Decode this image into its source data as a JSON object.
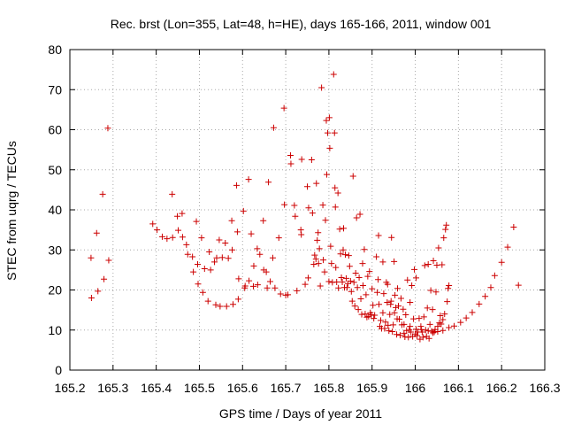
{
  "chart_data": {
    "type": "scatter",
    "title": "Rec. brst (Lon=355, Lat=48, h=HE), days 165-166, 2011, window 001",
    "xlabel": "GPS time / Days of year 2011",
    "ylabel": "STEC from uqrg / TECUs",
    "xlim": [
      165.2,
      166.3
    ],
    "ylim": [
      0,
      80
    ],
    "x_ticks": [
      165.2,
      165.3,
      165.4,
      165.5,
      165.6,
      165.7,
      165.8,
      165.9,
      166.0,
      166.1,
      166.2,
      166.3
    ],
    "x_tick_labels": [
      "165.2",
      "165.3",
      "165.4",
      "165.5",
      "165.6",
      "165.7",
      "165.8",
      "165.9",
      "166",
      "166.1",
      "166.2",
      "166.3"
    ],
    "y_ticks": [
      0,
      10,
      20,
      30,
      40,
      50,
      60,
      70,
      80
    ],
    "y_tick_labels": [
      "0",
      "10",
      "20",
      "30",
      "40",
      "50",
      "60",
      "70",
      "80"
    ],
    "grid": true,
    "marker": "+",
    "marker_color": "#cc0000",
    "series": [
      {
        "points": [
          [
            165.249,
            28.0
          ],
          [
            165.25,
            18.0
          ],
          [
            165.262,
            34.2
          ],
          [
            165.265,
            19.7
          ],
          [
            165.276,
            43.9
          ],
          [
            165.279,
            22.7
          ],
          [
            165.288,
            60.4
          ],
          [
            165.29,
            27.4
          ],
          [
            165.392,
            36.5
          ],
          [
            165.402,
            35.0
          ],
          [
            165.414,
            33.3
          ],
          [
            165.425,
            32.8
          ],
          [
            165.437,
            43.9
          ],
          [
            165.438,
            33.1
          ],
          [
            165.449,
            38.4
          ],
          [
            165.451,
            34.9
          ],
          [
            165.46,
            39.1
          ],
          [
            165.461,
            33.2
          ],
          [
            165.47,
            31.3
          ],
          [
            165.473,
            28.9
          ],
          [
            165.484,
            28.3
          ],
          [
            165.486,
            24.5
          ],
          [
            165.493,
            37.1
          ],
          [
            165.496,
            26.4
          ],
          [
            165.497,
            21.5
          ],
          [
            165.505,
            33.0
          ],
          [
            165.508,
            19.4
          ],
          [
            165.512,
            25.3
          ],
          [
            165.52,
            17.2
          ],
          [
            165.523,
            29.5
          ],
          [
            165.526,
            25.0
          ],
          [
            165.535,
            27.0
          ],
          [
            165.538,
            16.3
          ],
          [
            165.54,
            28.0
          ],
          [
            165.546,
            32.5
          ],
          [
            165.548,
            15.9
          ],
          [
            165.553,
            28.1
          ],
          [
            165.56,
            31.7
          ],
          [
            165.563,
            15.9
          ],
          [
            165.567,
            27.9
          ],
          [
            165.575,
            37.3
          ],
          [
            165.576,
            30.0
          ],
          [
            165.578,
            16.4
          ],
          [
            165.586,
            46.1
          ],
          [
            165.588,
            34.5
          ],
          [
            165.59,
            17.7
          ],
          [
            165.591,
            22.8
          ],
          [
            165.602,
            39.7
          ],
          [
            165.605,
            20.5
          ],
          [
            165.606,
            21.0
          ],
          [
            165.614,
            47.6
          ],
          [
            165.615,
            22.3
          ],
          [
            165.62,
            34.0
          ],
          [
            165.625,
            20.9
          ],
          [
            165.626,
            26.0
          ],
          [
            165.634,
            30.3
          ],
          [
            165.635,
            21.3
          ],
          [
            165.64,
            28.9
          ],
          [
            165.648,
            37.3
          ],
          [
            165.649,
            25.0
          ],
          [
            165.655,
            24.5
          ],
          [
            165.657,
            20.5
          ],
          [
            165.66,
            46.9
          ],
          [
            165.664,
            22.1
          ],
          [
            165.67,
            28.0
          ],
          [
            165.672,
            60.5
          ],
          [
            165.675,
            20.5
          ],
          [
            165.684,
            33.0
          ],
          [
            165.688,
            19.0
          ],
          [
            165.696,
            65.4
          ],
          [
            165.697,
            41.3
          ],
          [
            165.7,
            18.7
          ],
          [
            165.705,
            18.8
          ],
          [
            165.711,
            53.6
          ],
          [
            165.712,
            51.5
          ],
          [
            165.72,
            41.1
          ],
          [
            165.722,
            38.4
          ],
          [
            165.726,
            19.8
          ],
          [
            165.735,
            35.0
          ],
          [
            165.736,
            33.8
          ],
          [
            165.737,
            52.6
          ],
          [
            165.745,
            21.4
          ],
          [
            165.75,
            45.8
          ],
          [
            165.752,
            23.0
          ],
          [
            165.753,
            40.5
          ],
          [
            165.76,
            52.5
          ],
          [
            165.762,
            39.2
          ],
          [
            165.765,
            26.4
          ],
          [
            165.767,
            28.7
          ],
          [
            165.77,
            27.7
          ],
          [
            165.771,
            46.6
          ],
          [
            165.773,
            32.4
          ],
          [
            165.775,
            34.3
          ],
          [
            165.776,
            26.6
          ],
          [
            165.778,
            30.3
          ],
          [
            165.78,
            21.0
          ],
          [
            165.783,
            70.5
          ],
          [
            165.786,
            41.2
          ],
          [
            165.787,
            27.5
          ],
          [
            165.79,
            24.5
          ],
          [
            165.792,
            37.4
          ],
          [
            165.794,
            62.3
          ],
          [
            165.795,
            48.8
          ],
          [
            165.797,
            59.2
          ],
          [
            165.8,
            22.1
          ],
          [
            165.801,
            63.0
          ],
          [
            165.802,
            55.4
          ],
          [
            165.804,
            30.9
          ],
          [
            165.806,
            26.6
          ],
          [
            165.808,
            21.9
          ],
          [
            165.811,
            73.8
          ],
          [
            165.813,
            59.2
          ],
          [
            165.814,
            45.5
          ],
          [
            165.815,
            40.7
          ],
          [
            165.816,
            25.6
          ],
          [
            165.818,
            22.0
          ],
          [
            165.821,
            44.2
          ],
          [
            165.822,
            20.5
          ],
          [
            165.825,
            35.2
          ],
          [
            165.827,
            29.0
          ],
          [
            165.829,
            23.1
          ],
          [
            165.831,
            22.0
          ],
          [
            165.833,
            30.0
          ],
          [
            165.834,
            35.4
          ],
          [
            165.836,
            20.6
          ],
          [
            165.838,
            28.8
          ],
          [
            165.84,
            22.9
          ],
          [
            165.842,
            20.6
          ],
          [
            165.844,
            21.6
          ],
          [
            165.846,
            28.6
          ],
          [
            165.848,
            25.9
          ],
          [
            165.85,
            22.2
          ],
          [
            165.852,
            19.6
          ],
          [
            165.854,
            17.2
          ],
          [
            165.856,
            48.4
          ],
          [
            165.858,
            21.9
          ],
          [
            165.86,
            16.0
          ],
          [
            165.862,
            24.2
          ],
          [
            165.864,
            38.0
          ],
          [
            165.866,
            20.6
          ],
          [
            165.868,
            15.1
          ],
          [
            165.87,
            23.1
          ],
          [
            165.872,
            38.9
          ],
          [
            165.874,
            17.8
          ],
          [
            165.876,
            13.9
          ],
          [
            165.878,
            26.6
          ],
          [
            165.879,
            21.1
          ],
          [
            165.882,
            30.1
          ],
          [
            165.884,
            14.0
          ],
          [
            165.886,
            18.8
          ],
          [
            165.888,
            13.2
          ],
          [
            165.89,
            23.4
          ],
          [
            165.892,
            13.4
          ],
          [
            165.894,
            24.6
          ],
          [
            165.896,
            14.3
          ],
          [
            165.898,
            13.8
          ],
          [
            165.9,
            20.3
          ],
          [
            165.902,
            16.2
          ],
          [
            165.904,
            12.9
          ],
          [
            165.906,
            13.7
          ],
          [
            165.91,
            28.3
          ],
          [
            165.912,
            19.4
          ],
          [
            165.914,
            22.6
          ],
          [
            165.916,
            16.4
          ],
          [
            165.918,
            10.9
          ],
          [
            165.92,
            12.4
          ],
          [
            165.922,
            10.4
          ],
          [
            165.925,
            14.3
          ],
          [
            165.927,
            19.1
          ],
          [
            165.929,
            10.4
          ],
          [
            165.931,
            12.0
          ],
          [
            165.933,
            21.9
          ],
          [
            165.935,
            16.9
          ],
          [
            165.937,
            11.2
          ],
          [
            165.939,
            9.8
          ],
          [
            165.941,
            13.9
          ],
          [
            165.943,
            16.4
          ],
          [
            165.945,
            33.1
          ],
          [
            165.947,
            9.6
          ],
          [
            165.949,
            11.3
          ],
          [
            165.951,
            27.1
          ],
          [
            165.953,
            18.7
          ],
          [
            165.955,
            15.6
          ],
          [
            165.957,
            8.9
          ],
          [
            165.959,
            20.4
          ],
          [
            165.961,
            16.0
          ],
          [
            165.963,
            12.7
          ],
          [
            165.965,
            8.7
          ],
          [
            165.967,
            17.9
          ],
          [
            165.969,
            11.3
          ],
          [
            165.972,
            15.2
          ],
          [
            165.974,
            9.2
          ],
          [
            165.976,
            8.3
          ],
          [
            165.978,
            13.8
          ],
          [
            165.98,
            9.9
          ],
          [
            165.982,
            22.5
          ],
          [
            165.984,
            8.2
          ],
          [
            165.986,
            10.0
          ],
          [
            165.988,
            16.9
          ],
          [
            165.99,
            9.5
          ],
          [
            165.992,
            21.1
          ],
          [
            165.994,
            8.4
          ],
          [
            165.996,
            12.8
          ],
          [
            165.998,
            25.1
          ],
          [
            166.0,
            9.0
          ],
          [
            166.002,
            23.0
          ],
          [
            166.004,
            8.6
          ],
          [
            166.006,
            9.5
          ],
          [
            166.009,
            12.9
          ],
          [
            166.011,
            7.7
          ],
          [
            166.013,
            10.9
          ],
          [
            166.016,
            9.5
          ],
          [
            166.018,
            8.2
          ],
          [
            166.02,
            13.3
          ],
          [
            166.022,
            26.1
          ],
          [
            166.024,
            10.0
          ],
          [
            166.026,
            8.4
          ],
          [
            166.028,
            15.5
          ],
          [
            166.03,
            26.4
          ],
          [
            166.032,
            7.9
          ],
          [
            166.034,
            11.4
          ],
          [
            166.036,
            19.9
          ],
          [
            166.038,
            9.7
          ],
          [
            166.04,
            15.1
          ],
          [
            166.042,
            27.3
          ],
          [
            166.044,
            9.5
          ],
          [
            166.046,
            10.1
          ],
          [
            166.048,
            19.5
          ],
          [
            166.05,
            26.2
          ],
          [
            166.052,
            10.9
          ],
          [
            166.054,
            30.5
          ],
          [
            166.056,
            11.8
          ],
          [
            166.058,
            13.6
          ],
          [
            166.06,
            11.5
          ],
          [
            166.062,
            26.3
          ],
          [
            166.064,
            12.6
          ],
          [
            166.066,
            33.0
          ],
          [
            166.068,
            14.0
          ],
          [
            166.07,
            35.1
          ],
          [
            166.072,
            36.2
          ],
          [
            166.074,
            17.1
          ],
          [
            166.076,
            20.4
          ],
          [
            166.078,
            21.1
          ]
        ]
      },
      {
        "points": [
          [
            165.915,
            33.6
          ],
          [
            165.925,
            27.0
          ],
          [
            165.936,
            21.4
          ],
          [
            165.944,
            17.2
          ],
          [
            165.952,
            14.3
          ],
          [
            165.958,
            12.8
          ],
          [
            165.974,
            11.4
          ],
          [
            165.988,
            10.9
          ],
          [
            166.002,
            10.2
          ],
          [
            166.014,
            10.1
          ],
          [
            166.03,
            9.8
          ],
          [
            166.041,
            9.3
          ],
          [
            166.052,
            9.6
          ],
          [
            166.064,
            9.9
          ],
          [
            166.078,
            10.6
          ],
          [
            166.09,
            11.0
          ],
          [
            166.105,
            11.9
          ],
          [
            166.118,
            13.0
          ],
          [
            166.132,
            14.4
          ],
          [
            166.148,
            16.5
          ],
          [
            166.162,
            18.4
          ],
          [
            166.175,
            20.6
          ],
          [
            166.184,
            23.6
          ],
          [
            166.2,
            26.9
          ],
          [
            166.214,
            30.7
          ],
          [
            166.228,
            35.7
          ],
          [
            166.239,
            21.2
          ]
        ]
      }
    ]
  }
}
